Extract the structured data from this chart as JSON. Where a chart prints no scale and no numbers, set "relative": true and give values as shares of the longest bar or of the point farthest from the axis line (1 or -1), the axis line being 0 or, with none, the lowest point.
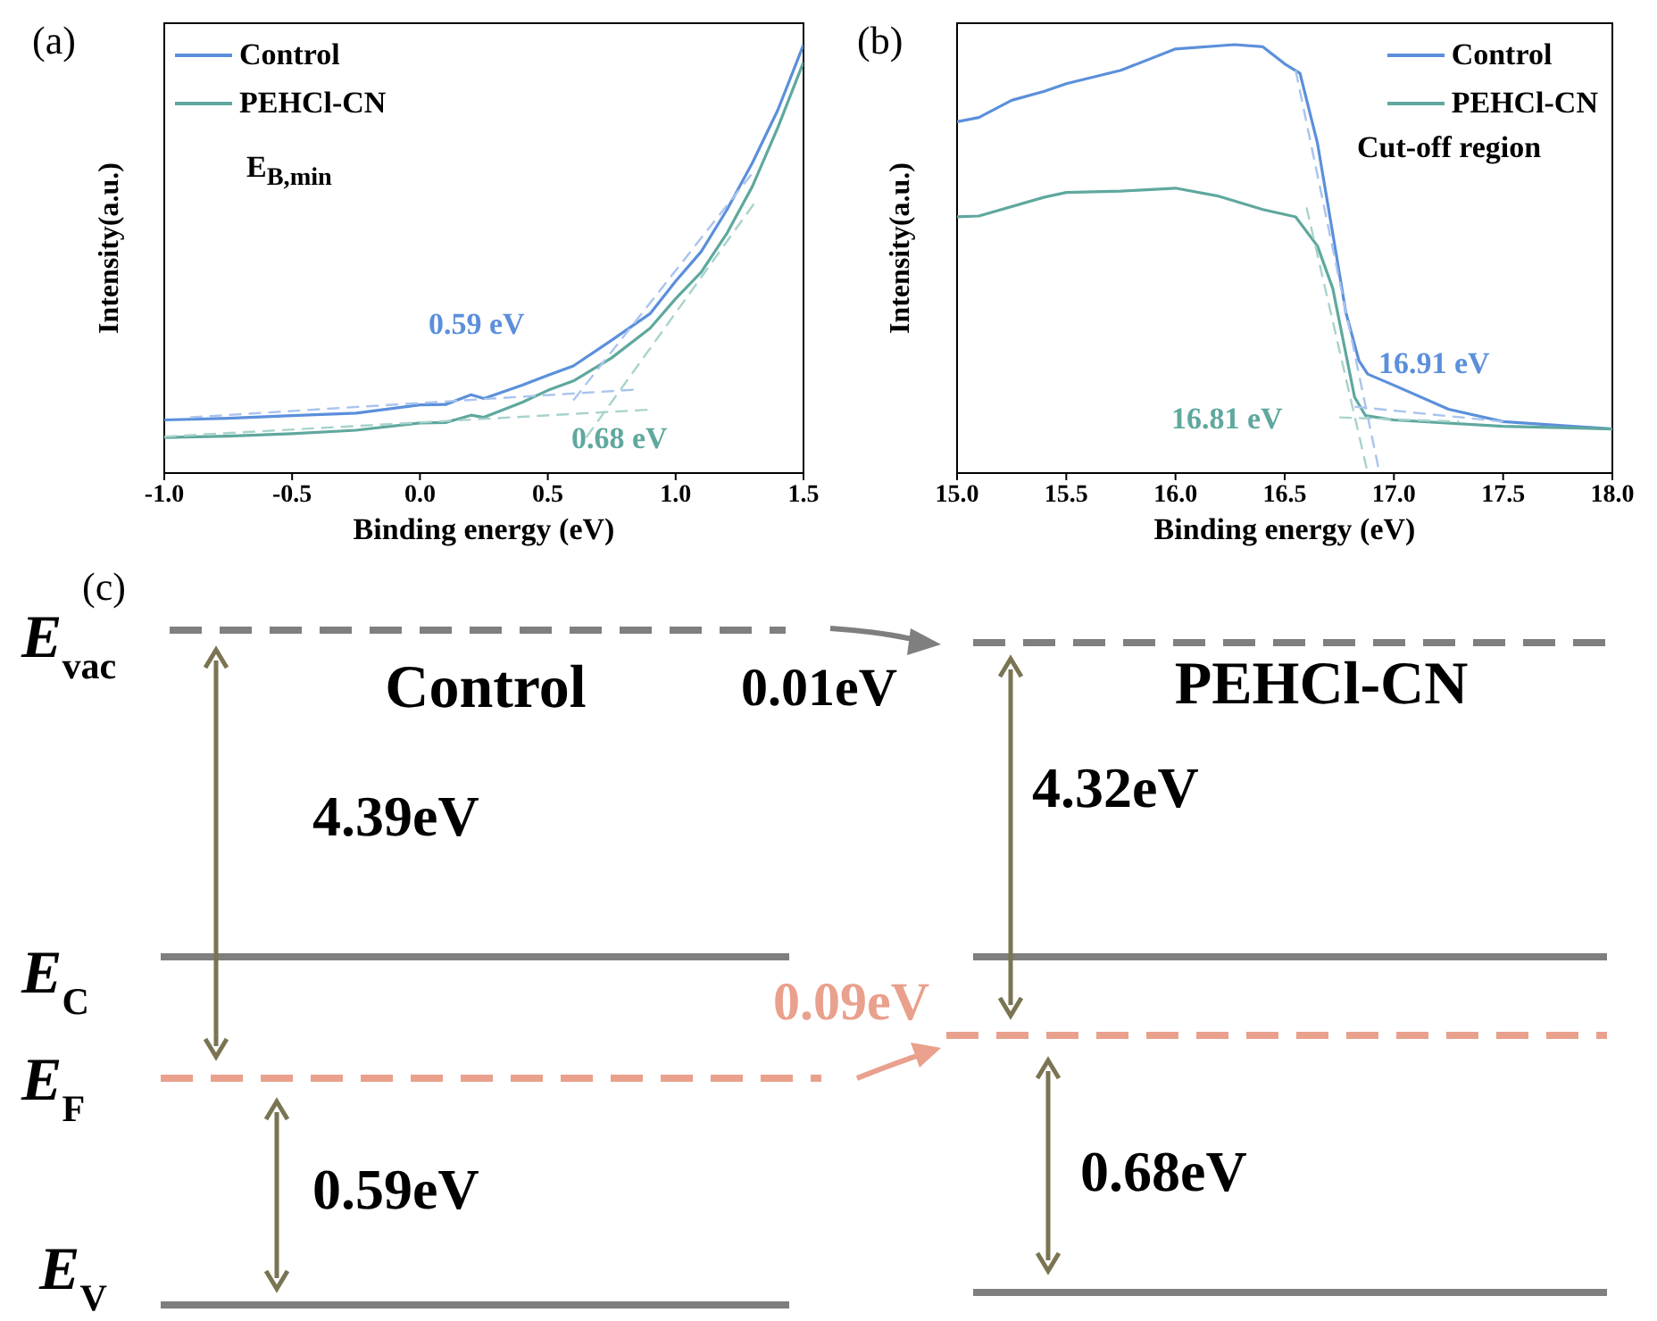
{
  "chart_data": [
    {
      "type": "line",
      "title": "(a)",
      "xlabel": "Binding energy (eV)",
      "ylabel": "Intensity(a.u.)",
      "relative": true,
      "xlim": [
        -1.0,
        1.5
      ],
      "xticks": [
        {
          "value": -1,
          "label": "-1.0"
        },
        {
          "value": -0.5,
          "label": "-0.5"
        },
        {
          "value": 0,
          "label": "0.0"
        },
        {
          "value": 0.5,
          "label": "0.5"
        },
        {
          "value": 1,
          "label": "1.0"
        },
        {
          "value": 1.5,
          "label": "1.5"
        }
      ],
      "legend": "top left",
      "line_style": "solid",
      "annotations": [
        "0.59 eV",
        "0.68 eV",
        "E$_{B,min}$"
      ],
      "series": [
        {
          "name": "Control",
          "color": "#5b8fdb",
          "x": [
            -1.0,
            -0.75,
            -0.5,
            -0.25,
            0,
            0.1,
            0.2,
            0.25,
            0.4,
            0.5,
            0.6,
            0.75,
            0.9,
            1.0,
            1.1,
            1.2,
            1.3,
            1.4,
            1.5
          ],
          "values": [
            0.124,
            0.128,
            0.134,
            0.14,
            0.159,
            0.16,
            0.183,
            0.174,
            0.205,
            0.228,
            0.25,
            0.31,
            0.372,
            0.448,
            0.517,
            0.614,
            0.724,
            0.848,
            1.0
          ]
        },
        {
          "name": "PEHCl-CN",
          "color": "#5fa89e",
          "x": [
            -1.0,
            -0.75,
            -0.5,
            -0.25,
            0,
            0.1,
            0.2,
            0.25,
            0.4,
            0.5,
            0.6,
            0.75,
            0.9,
            1.0,
            1.1,
            1.2,
            1.3,
            1.4,
            1.5
          ],
          "values": [
            0.083,
            0.086,
            0.092,
            0.1,
            0.117,
            0.118,
            0.135,
            0.13,
            0.165,
            0.193,
            0.215,
            0.269,
            0.338,
            0.407,
            0.469,
            0.559,
            0.669,
            0.807,
            0.959
          ]
        },
        {
          "type": "line",
          "color": "#a9c4ee",
          "line_style": "dashed",
          "x": [
            -0.9,
            0.85
          ],
          "values": [
            0.13,
            0.195
          ]
        },
        {
          "type": "line",
          "color": "#a9c4ee",
          "line_style": "dashed",
          "x": [
            0.6,
            1.3
          ],
          "values": [
            0.17,
            0.7
          ]
        },
        {
          "type": "line",
          "color": "#a8d3cc",
          "line_style": "dashed",
          "x": [
            -1.0,
            0.9
          ],
          "values": [
            0.085,
            0.148
          ]
        },
        {
          "type": "line",
          "color": "#a8d3cc",
          "line_style": "dashed",
          "x": [
            0.65,
            1.32
          ],
          "values": [
            0.083,
            0.64
          ]
        }
      ]
    },
    {
      "type": "line",
      "title": "(b)",
      "xlabel": "Binding energy (eV)",
      "ylabel": "Intensity(a.u.)",
      "relative": true,
      "xlim": [
        15.0,
        18.0
      ],
      "xticks": [
        {
          "value": 15,
          "label": "15.0"
        },
        15.5,
        {
          "value": 16,
          "label": "16.0"
        },
        16.5,
        {
          "value": 17,
          "label": "17.0"
        },
        17.5,
        {
          "value": 18,
          "label": "18.0"
        }
      ],
      "legend": "top right",
      "line_style": "solid",
      "annotations": [
        "16.91 eV",
        "16.81 eV",
        "Cut-off region"
      ],
      "series": [
        {
          "name": "Control",
          "color": "#5b8fdb",
          "x": [
            15.0,
            15.1,
            15.25,
            15.4,
            15.5,
            15.75,
            16.0,
            16.27,
            16.4,
            16.5,
            16.57,
            16.65,
            16.72,
            16.78,
            16.84,
            16.88,
            17.0,
            17.25,
            17.5,
            18.0
          ],
          "values": [
            0.82,
            0.83,
            0.87,
            0.891,
            0.909,
            0.94,
            0.99,
            1.0,
            0.995,
            0.955,
            0.933,
            0.77,
            0.559,
            0.375,
            0.262,
            0.231,
            0.205,
            0.149,
            0.12,
            0.103
          ]
        },
        {
          "name": "PEHCl-CN",
          "color": "#5fa89e",
          "x": [
            15.0,
            15.1,
            15.4,
            15.5,
            15.75,
            16.0,
            16.2,
            16.4,
            16.55,
            16.65,
            16.72,
            16.77,
            16.82,
            16.87,
            17.0,
            17.5,
            18.0
          ],
          "values": [
            0.598,
            0.6,
            0.644,
            0.655,
            0.658,
            0.665,
            0.646,
            0.615,
            0.598,
            0.53,
            0.431,
            0.304,
            0.177,
            0.134,
            0.124,
            0.109,
            0.103
          ]
        },
        {
          "type": "line",
          "color": "#a9c4ee",
          "line_style": "dashed",
          "x": [
            16.55,
            16.93
          ],
          "values": [
            0.94,
            0.01
          ]
        },
        {
          "type": "line",
          "color": "#a9c4ee",
          "line_style": "dashed",
          "x": [
            16.82,
            17.5
          ],
          "values": [
            0.155,
            0.12
          ]
        },
        {
          "type": "line",
          "color": "#a8d3cc",
          "line_style": "dashed",
          "x": [
            16.6,
            16.88
          ],
          "values": [
            0.62,
            0.0
          ]
        },
        {
          "type": "line",
          "color": "#a8d3cc",
          "line_style": "dashed",
          "x": [
            16.75,
            17.3
          ],
          "values": [
            0.13,
            0.12
          ]
        }
      ]
    },
    {
      "type": "other",
      "title": "(c)",
      "annotations": [
        "E$_{vac}$",
        "Control",
        "PEHCl-CN",
        "0.01eV",
        "4.39eV",
        "4.32eV",
        "E$_{C}$",
        "0.09eV",
        "E$_{F}$",
        "0.59eV",
        "0.68eV",
        "E$_{V}$"
      ]
    }
  ]
}
